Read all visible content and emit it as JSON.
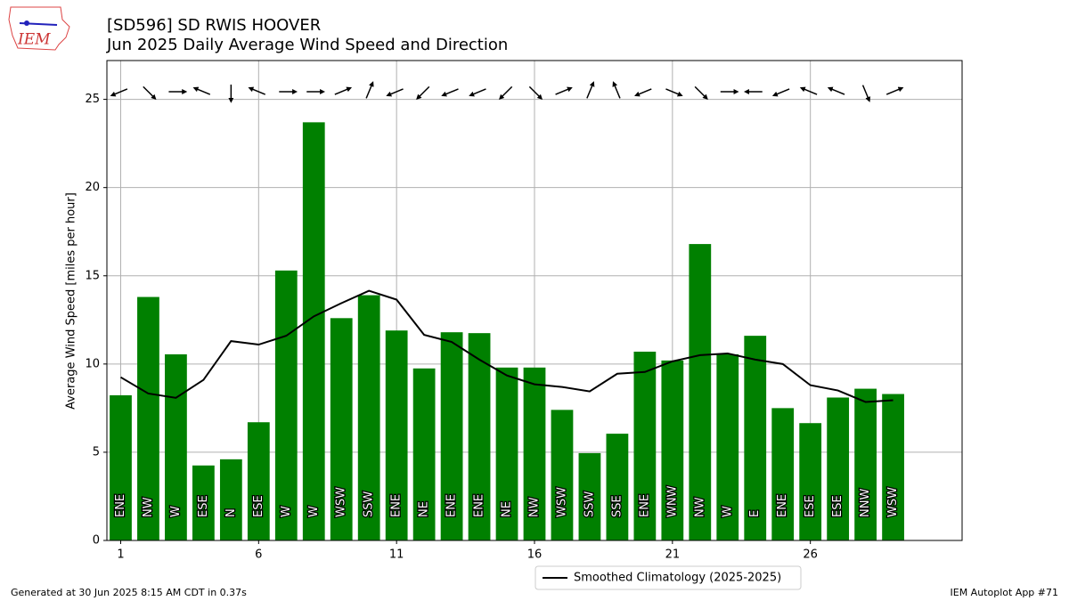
{
  "logo_text": "IEM",
  "footer_left": "Generated at 30 Jun 2025 8:15 AM CDT in 0.37s",
  "footer_right": "IEM Autoplot App #71",
  "chart_data": {
    "type": "bar",
    "title": "[SD596] SD RWIS HOOVER",
    "subtitle": "Jun 2025 Daily Average Wind Speed and Direction",
    "y_label": "Average Wind Speed [miles per hour]",
    "x": [
      1,
      2,
      3,
      4,
      5,
      6,
      7,
      8,
      9,
      10,
      11,
      12,
      13,
      14,
      15,
      16,
      17,
      18,
      19,
      20,
      21,
      22,
      23,
      24,
      25,
      26,
      27,
      28,
      29
    ],
    "values": [
      8.23,
      13.8,
      10.55,
      4.25,
      4.6,
      6.7,
      15.3,
      23.7,
      12.6,
      13.9,
      11.9,
      9.75,
      11.8,
      11.75,
      9.8,
      9.8,
      7.4,
      4.95,
      6.05,
      10.7,
      10.2,
      16.8,
      10.55,
      11.6,
      7.5,
      6.65,
      8.1,
      8.6,
      8.3
    ],
    "color": "#008000",
    "directions": [
      "ENE",
      "NW",
      "W",
      "ESE",
      "N",
      "ESE",
      "W",
      "W",
      "WSW",
      "SSW",
      "ENE",
      "NE",
      "ENE",
      "ENE",
      "NE",
      "NW",
      "WSW",
      "SSW",
      "SSE",
      "ENE",
      "WNW",
      "NW",
      "W",
      "E",
      "ENE",
      "ESE",
      "ESE",
      "NNW",
      "WSW"
    ],
    "direction_degrees": [
      67.5,
      315,
      270,
      112.5,
      0,
      112.5,
      270,
      270,
      247.5,
      202.5,
      67.5,
      45,
      67.5,
      67.5,
      45,
      315,
      247.5,
      202.5,
      157.5,
      67.5,
      292.5,
      315,
      270,
      90,
      67.5,
      112.5,
      112.5,
      337.5,
      247.5
    ],
    "series": [
      {
        "name": "Smoothed Climatology (2025-2025)",
        "color": "#000000",
        "values": [
          9.25,
          8.33,
          8.08,
          9.1,
          11.3,
          11.1,
          11.6,
          12.7,
          13.45,
          14.15,
          13.65,
          11.65,
          11.25,
          10.25,
          9.35,
          8.85,
          8.7,
          8.45,
          9.45,
          9.55,
          10.15,
          10.5,
          10.6,
          10.25,
          10.0,
          8.8,
          8.5,
          7.85,
          7.95
        ]
      }
    ],
    "xlim": [
      0.5,
      31.5
    ],
    "xticks": [
      1,
      6,
      11,
      16,
      21,
      26
    ],
    "ylim": [
      0,
      27.2
    ],
    "yticks": [
      0,
      5,
      10,
      15,
      20,
      25
    ],
    "grid": true,
    "legend": "lower center"
  }
}
